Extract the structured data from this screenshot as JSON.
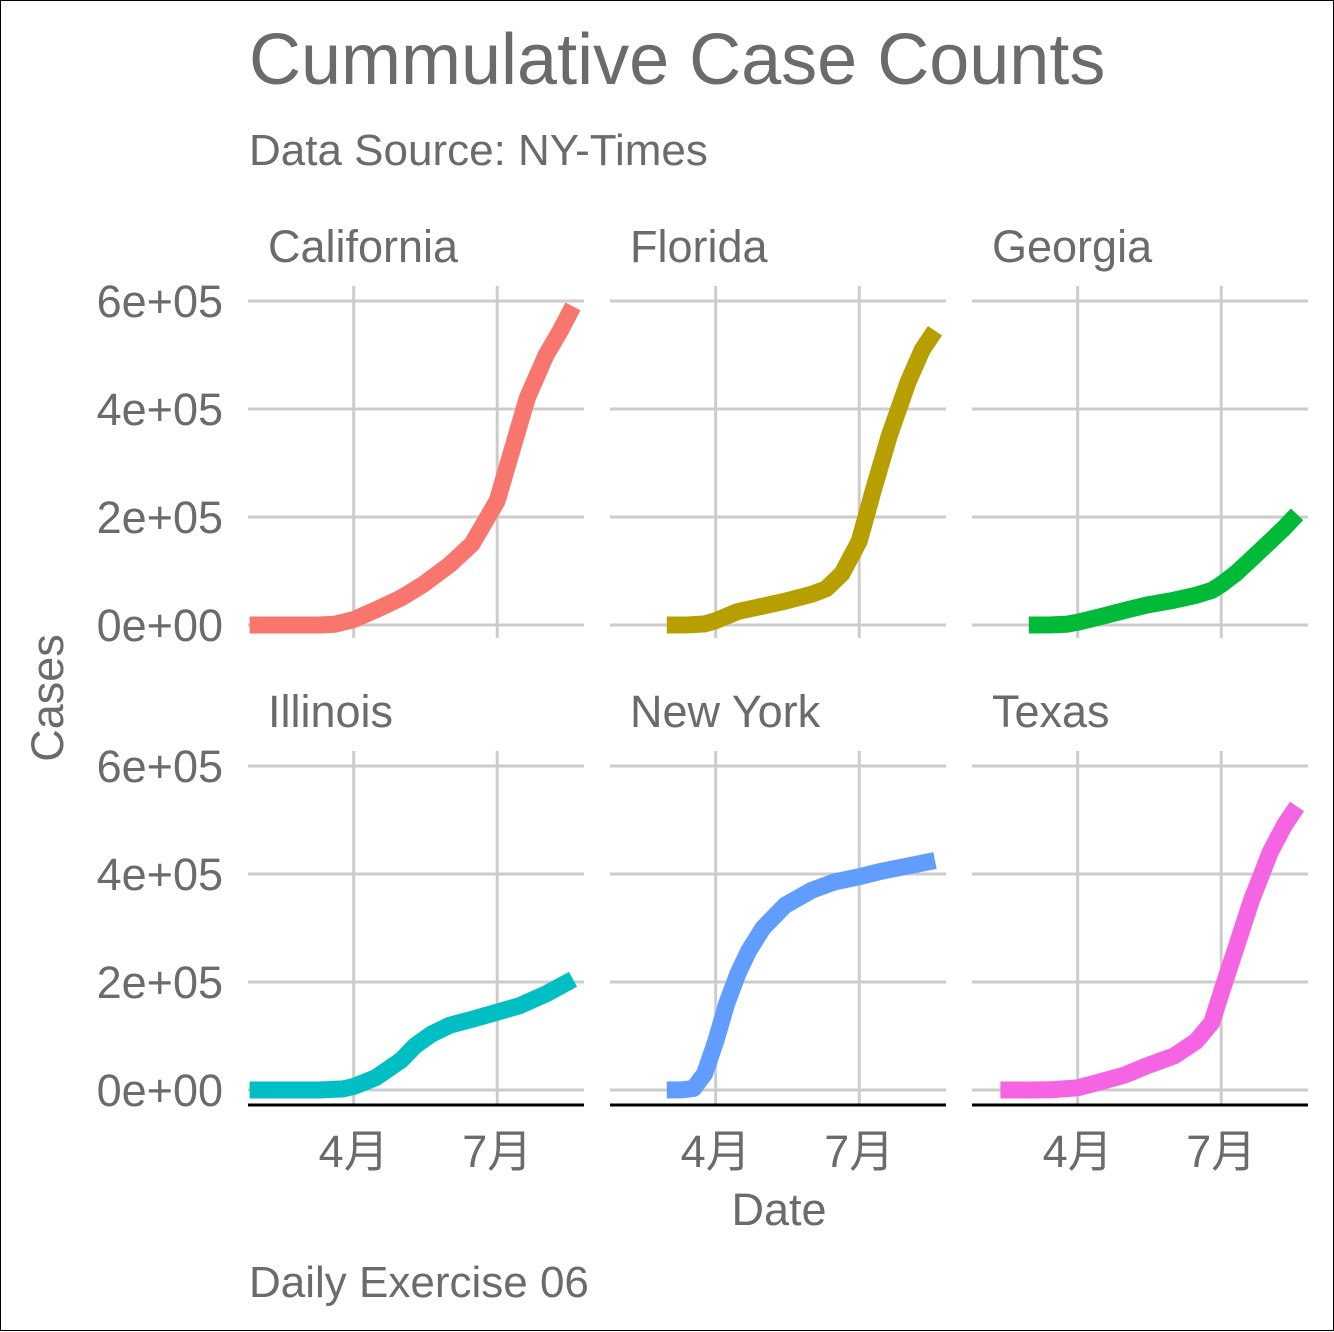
{
  "chart_data": {
    "type": "line",
    "title": "Cummulative Case Counts",
    "subtitle": "Data Source: NY-Times",
    "caption": "Daily Exercise 06",
    "xlabel": "Date",
    "ylabel": "Cases",
    "ylim": [
      0,
      600000
    ],
    "y_ticks": [
      0,
      200000,
      400000,
      600000
    ],
    "y_tick_labels": [
      "0e+00",
      "2e+05",
      "4e+05",
      "6e+05"
    ],
    "x_range": [
      "2020-01-25",
      "2020-08-25"
    ],
    "x_ticks": [
      "2020-04-01",
      "2020-07-01"
    ],
    "x_tick_labels": [
      "4月",
      "7月"
    ],
    "grid": true,
    "legend": "none",
    "facets": [
      {
        "name": "California",
        "color": "#F8766D",
        "x": [
          "2020-01-26",
          "2020-02-15",
          "2020-03-10",
          "2020-03-20",
          "2020-04-01",
          "2020-04-15",
          "2020-05-01",
          "2020-05-15",
          "2020-06-01",
          "2020-06-15",
          "2020-07-01",
          "2020-07-10",
          "2020-07-20",
          "2020-08-01",
          "2020-08-10",
          "2020-08-18"
        ],
        "y": [
          0,
          0,
          0,
          1500,
          10000,
          28000,
          50000,
          75000,
          112000,
          150000,
          230000,
          320000,
          420000,
          500000,
          545000,
          590000
        ]
      },
      {
        "name": "Florida",
        "color": "#B79F00",
        "x": [
          "2020-03-01",
          "2020-03-15",
          "2020-03-25",
          "2020-04-01",
          "2020-04-15",
          "2020-05-01",
          "2020-05-15",
          "2020-06-01",
          "2020-06-10",
          "2020-06-20",
          "2020-07-01",
          "2020-07-10",
          "2020-07-20",
          "2020-08-01",
          "2020-08-10",
          "2020-08-18"
        ],
        "y": [
          0,
          100,
          2000,
          8000,
          25000,
          35000,
          44000,
          57000,
          67000,
          95000,
          155000,
          250000,
          350000,
          450000,
          510000,
          545000
        ]
      },
      {
        "name": "Georgia",
        "color": "#00BA38",
        "x": [
          "2020-03-01",
          "2020-03-15",
          "2020-03-25",
          "2020-04-01",
          "2020-04-15",
          "2020-05-01",
          "2020-05-15",
          "2020-06-01",
          "2020-06-15",
          "2020-06-25",
          "2020-07-01",
          "2020-07-10",
          "2020-07-20",
          "2020-08-01",
          "2020-08-10",
          "2020-08-18"
        ],
        "y": [
          0,
          200,
          1500,
          5000,
          15000,
          27000,
          37000,
          46000,
          55000,
          64000,
          75000,
          95000,
          122000,
          155000,
          180000,
          205000
        ]
      },
      {
        "name": "Illinois",
        "color": "#00BFC4",
        "x": [
          "2020-01-26",
          "2020-02-15",
          "2020-03-10",
          "2020-03-25",
          "2020-04-01",
          "2020-04-15",
          "2020-05-01",
          "2020-05-10",
          "2020-05-20",
          "2020-06-01",
          "2020-06-15",
          "2020-07-01",
          "2020-07-15",
          "2020-08-01",
          "2020-08-18"
        ],
        "y": [
          0,
          0,
          0,
          2000,
          6500,
          23000,
          55000,
          82000,
          103000,
          120000,
          131000,
          144000,
          156000,
          178000,
          205000
        ]
      },
      {
        "name": "New York",
        "color": "#619CFF",
        "x": [
          "2020-03-01",
          "2020-03-10",
          "2020-03-18",
          "2020-03-25",
          "2020-04-01",
          "2020-04-08",
          "2020-04-15",
          "2020-04-22",
          "2020-05-01",
          "2020-05-15",
          "2020-06-01",
          "2020-06-15",
          "2020-07-01",
          "2020-07-15",
          "2020-08-01",
          "2020-08-18"
        ],
        "y": [
          0,
          200,
          3000,
          30000,
          90000,
          160000,
          215000,
          258000,
          300000,
          342000,
          370000,
          385000,
          395000,
          405000,
          415000,
          425000
        ]
      },
      {
        "name": "Texas",
        "color": "#F564E3",
        "x": [
          "2020-02-12",
          "2020-03-01",
          "2020-03-15",
          "2020-04-01",
          "2020-04-15",
          "2020-05-01",
          "2020-05-15",
          "2020-06-01",
          "2020-06-15",
          "2020-06-25",
          "2020-07-01",
          "2020-07-10",
          "2020-07-20",
          "2020-08-01",
          "2020-08-10",
          "2020-08-18"
        ],
        "y": [
          0,
          0,
          300,
          4000,
          15000,
          28000,
          45000,
          63000,
          90000,
          125000,
          180000,
          260000,
          350000,
          440000,
          490000,
          525000
        ]
      }
    ]
  }
}
